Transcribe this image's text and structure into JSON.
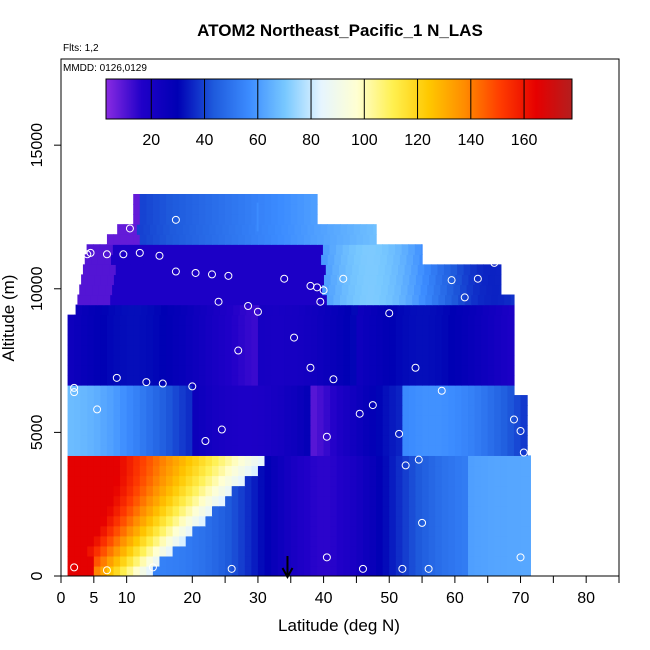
{
  "chart_data": {
    "type": "heatmap",
    "title": "ATOM2 Northeast_Pacific_1 N_LAS",
    "subtitle_flights": "Flts: 1,2",
    "subtitle_dates": "MMDD: 0126,0129",
    "xlabel": "Latitude (deg N)",
    "ylabel": "Altitude (m)",
    "xlim": [
      0,
      85
    ],
    "ylim": [
      0,
      18000
    ],
    "x_ticks": [
      "0",
      "5",
      "10",
      "20",
      "30",
      "40",
      "50",
      "60",
      "70",
      "80"
    ],
    "x_tick_values": [
      0,
      5,
      10,
      20,
      30,
      40,
      50,
      60,
      70,
      80
    ],
    "y_ticks": [
      "0",
      "5000",
      "10000",
      "15000"
    ],
    "y_tick_values": [
      0,
      5000,
      10000,
      15000
    ],
    "colorbar": {
      "min": 3,
      "max": 178,
      "tick_labels": [
        "20",
        "40",
        "60",
        "80",
        "100",
        "120",
        "140",
        "160"
      ],
      "tick_values": [
        20,
        40,
        60,
        80,
        100,
        120,
        140,
        160
      ],
      "colors": [
        "#8a2be2",
        "#2000c8",
        "#0000b4",
        "#1e5adc",
        "#3c8cff",
        "#78c8ff",
        "#e6f5ff",
        "#ffffd2",
        "#fff050",
        "#ffc800",
        "#ff8c00",
        "#ff3c00",
        "#e60000",
        "#b41e1e"
      ]
    },
    "marker": {
      "lat": 34.5,
      "label": "arrow"
    },
    "profile_points": [
      [
        0,
        300
      ],
      [
        2,
        300
      ],
      [
        7,
        200
      ],
      [
        14,
        300
      ],
      [
        26,
        250
      ],
      [
        46,
        250
      ],
      [
        52,
        250
      ],
      [
        56,
        250
      ],
      [
        40.5,
        650
      ],
      [
        70,
        650
      ],
      [
        55,
        1850
      ],
      [
        52.5,
        3850
      ],
      [
        54.5,
        4050
      ],
      [
        70.5,
        4300
      ],
      [
        22,
        4700
      ],
      [
        24.5,
        5100
      ],
      [
        40.5,
        4850
      ],
      [
        51.5,
        4950
      ],
      [
        70,
        5050
      ],
      [
        69,
        5450
      ],
      [
        45.5,
        5650
      ],
      [
        47.5,
        5950
      ],
      [
        5.5,
        5800
      ],
      [
        2,
        6400
      ],
      [
        2,
        6550
      ],
      [
        8.5,
        6900
      ],
      [
        13,
        6750
      ],
      [
        15.5,
        6700
      ],
      [
        20,
        6600
      ],
      [
        41.5,
        6850
      ],
      [
        38,
        7250
      ],
      [
        54,
        7250
      ],
      [
        58,
        6450
      ],
      [
        27,
        7850
      ],
      [
        35.5,
        8300
      ],
      [
        30,
        9200
      ],
      [
        28.5,
        9400
      ],
      [
        24,
        9550
      ],
      [
        39.5,
        9550
      ],
      [
        50,
        9150
      ],
      [
        61.5,
        9700
      ],
      [
        38,
        10100
      ],
      [
        39,
        10050
      ],
      [
        40,
        9950
      ],
      [
        34,
        10350
      ],
      [
        43,
        10350
      ],
      [
        20.5,
        10550
      ],
      [
        17.5,
        10600
      ],
      [
        23,
        10500
      ],
      [
        25.5,
        10450
      ],
      [
        59.5,
        10300
      ],
      [
        63.5,
        10350
      ],
      [
        66,
        10900
      ],
      [
        4,
        11200
      ],
      [
        4.5,
        11250
      ],
      [
        7,
        11200
      ],
      [
        9.5,
        11200
      ],
      [
        12,
        11250
      ],
      [
        15,
        11150
      ],
      [
        10.5,
        12100
      ],
      [
        17.5,
        12400
      ]
    ]
  }
}
